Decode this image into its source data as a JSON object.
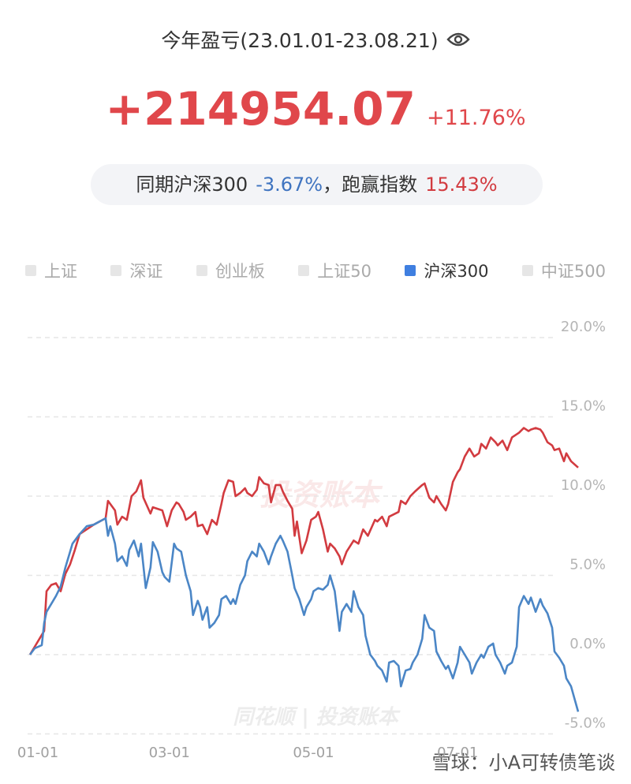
{
  "header": {
    "title": "今年盈亏(23.01.01-23.08.21)",
    "profit": "+214954.07",
    "profit_pct": "+11.76%",
    "compare": {
      "prefix": "同期沪深300",
      "index_pct": "-3.67%",
      "mid": "，跑赢指数",
      "excess_pct": "15.43%"
    }
  },
  "watermarks": [
    "投资账本",
    "同花顺 | 投资账本",
    "雪球：小A可转债笔谈"
  ],
  "chart_data": {
    "type": "line",
    "legend": {
      "items": [
        "上证",
        "深证",
        "创业板",
        "上证50",
        "沪深300",
        "中证500"
      ],
      "active": 4,
      "active_color": "#3f7fe0",
      "inactive_color": "#e6e6e6"
    },
    "xlim": [
      0,
      232
    ],
    "xticks": [
      {
        "value": 0,
        "label": "01-01"
      },
      {
        "value": 59,
        "label": "03-01"
      },
      {
        "value": 120,
        "label": "05-01"
      },
      {
        "value": 181,
        "label": "07-01"
      }
    ],
    "ylim": [
      -5,
      20
    ],
    "yticks": [
      {
        "value": -5,
        "label": "-5.0%"
      },
      {
        "value": 0,
        "label": "0.0%"
      },
      {
        "value": 5,
        "label": "5.0%"
      },
      {
        "value": 10,
        "label": "10.0%"
      },
      {
        "value": 15,
        "label": "15.0%"
      },
      {
        "value": 20,
        "label": "20.0%"
      }
    ],
    "grid": true,
    "series": [
      {
        "color": "#d23b40",
        "x": [
          0,
          2,
          6,
          7,
          9,
          11,
          13,
          15,
          17,
          19,
          21,
          24,
          27,
          32,
          33,
          36,
          37,
          39,
          41,
          43,
          45,
          47,
          48,
          51,
          52,
          56,
          58,
          60,
          62,
          63,
          65,
          66,
          68,
          70,
          71,
          73,
          75,
          77,
          79,
          81,
          82,
          84,
          86,
          87,
          89,
          91,
          92,
          94,
          96,
          97,
          99,
          101,
          102,
          104,
          106,
          107,
          109,
          111,
          112,
          113,
          115,
          117,
          119,
          121,
          122,
          124,
          126,
          127,
          129,
          131,
          132,
          134,
          137,
          139,
          141,
          143,
          146,
          147,
          149,
          151,
          152,
          156,
          157,
          159,
          161,
          163,
          166,
          167,
          169,
          171,
          172,
          174,
          176,
          177,
          179,
          181,
          182,
          184,
          186,
          188,
          190,
          191,
          193,
          195,
          197,
          198,
          200,
          202,
          204,
          206,
          207,
          209,
          211,
          212,
          214,
          216,
          217,
          219,
          221,
          222,
          224,
          226,
          227,
          229,
          232
        ],
        "values": [
          0.0,
          0.5,
          1.5,
          4.0,
          4.4,
          4.5,
          4.0,
          5.1,
          5.7,
          6.6,
          7.6,
          7.9,
          8.2,
          8.6,
          9.7,
          9.1,
          8.2,
          8.7,
          8.5,
          10.0,
          10.3,
          11.0,
          9.9,
          8.9,
          9.3,
          9.1,
          8.1,
          9.1,
          9.6,
          9.5,
          9.0,
          8.5,
          8.7,
          9.0,
          8.1,
          8.2,
          7.6,
          8.5,
          8.2,
          9.5,
          10.2,
          11.0,
          10.9,
          10.0,
          10.2,
          10.5,
          10.2,
          10.0,
          10.4,
          11.2,
          10.8,
          10.7,
          9.6,
          10.7,
          10.7,
          10.3,
          9.7,
          9.2,
          7.5,
          8.4,
          6.4,
          7.2,
          8.5,
          8.7,
          9.0,
          7.9,
          6.5,
          7.0,
          6.7,
          6.2,
          5.7,
          6.5,
          7.2,
          7.0,
          7.9,
          7.5,
          8.5,
          8.4,
          8.7,
          8.1,
          8.7,
          9.0,
          9.7,
          9.5,
          10.0,
          10.3,
          10.7,
          10.8,
          9.9,
          9.6,
          10.0,
          9.5,
          9.1,
          9.5,
          10.9,
          11.5,
          11.7,
          12.5,
          13.0,
          12.5,
          12.7,
          13.3,
          13.0,
          13.7,
          13.4,
          13.2,
          13.5,
          12.9,
          13.7,
          13.9,
          14.0,
          14.3,
          14.1,
          14.2,
          14.3,
          14.2,
          14.0,
          13.4,
          13.2,
          12.9,
          13.0,
          12.2,
          12.7,
          12.2,
          11.8
        ]
      },
      {
        "color": "#4b86c6",
        "x": [
          0,
          2,
          5,
          6,
          7,
          9,
          11,
          13,
          15,
          17,
          18,
          21,
          24,
          27,
          32,
          33,
          34,
          36,
          37,
          39,
          41,
          42,
          44,
          46,
          47,
          49,
          51,
          52,
          54,
          56,
          57,
          59,
          61,
          62,
          64,
          66,
          68,
          69,
          71,
          72,
          73,
          75,
          76,
          78,
          80,
          81,
          83,
          85,
          86,
          87,
          89,
          91,
          92,
          94,
          96,
          97,
          99,
          101,
          102,
          104,
          106,
          107,
          109,
          111,
          112,
          114,
          116,
          117,
          119,
          120,
          122,
          124,
          126,
          127,
          129,
          131,
          132,
          134,
          136,
          137,
          139,
          141,
          142,
          144,
          146,
          147,
          149,
          151,
          152,
          154,
          156,
          157,
          159,
          161,
          162,
          164,
          166,
          167,
          169,
          171,
          172,
          174,
          176,
          177,
          179,
          181,
          182,
          184,
          186,
          187,
          189,
          191,
          192,
          194,
          196,
          197,
          199,
          201,
          202,
          204,
          206,
          207,
          209,
          211,
          212,
          214,
          216,
          217,
          219,
          221,
          222,
          224,
          226,
          227,
          229,
          232
        ],
        "values": [
          0.0,
          0.4,
          0.6,
          2.0,
          2.7,
          3.2,
          3.7,
          4.3,
          5.5,
          6.5,
          7.0,
          7.6,
          8.1,
          8.2,
          8.6,
          7.5,
          8.1,
          7.0,
          5.9,
          6.2,
          5.6,
          6.6,
          7.2,
          6.2,
          7.0,
          4.2,
          5.5,
          7.1,
          6.5,
          5.2,
          4.9,
          4.6,
          7.0,
          6.7,
          6.5,
          5.0,
          4.0,
          2.5,
          3.4,
          3.0,
          2.2,
          3.0,
          1.7,
          2.0,
          2.5,
          3.5,
          3.7,
          3.2,
          3.5,
          3.2,
          4.4,
          5.0,
          5.9,
          6.5,
          6.2,
          7.0,
          6.5,
          5.7,
          6.2,
          7.0,
          7.5,
          7.2,
          6.5,
          5.0,
          4.2,
          3.5,
          2.5,
          3.0,
          3.5,
          4.0,
          4.2,
          4.1,
          4.4,
          5.0,
          4.0,
          1.5,
          2.7,
          3.2,
          2.7,
          4.0,
          3.0,
          2.5,
          1.2,
          0.0,
          -0.4,
          -0.7,
          -1.0,
          -1.7,
          -0.5,
          -0.4,
          -0.7,
          -2.0,
          -1.0,
          -0.9,
          -0.5,
          0.0,
          1.0,
          2.5,
          1.7,
          1.5,
          0.2,
          -0.4,
          -0.9,
          -0.7,
          -1.5,
          -0.5,
          0.5,
          0.0,
          -0.5,
          -1.2,
          -0.5,
          0.0,
          -0.2,
          0.5,
          0.7,
          0.0,
          -0.5,
          -1.2,
          -0.7,
          -0.5,
          0.5,
          3.0,
          3.7,
          3.2,
          3.6,
          2.7,
          3.5,
          3.1,
          2.6,
          1.7,
          0.2,
          -0.2,
          -0.7,
          -1.5,
          -2.0,
          -3.6
        ]
      }
    ]
  }
}
